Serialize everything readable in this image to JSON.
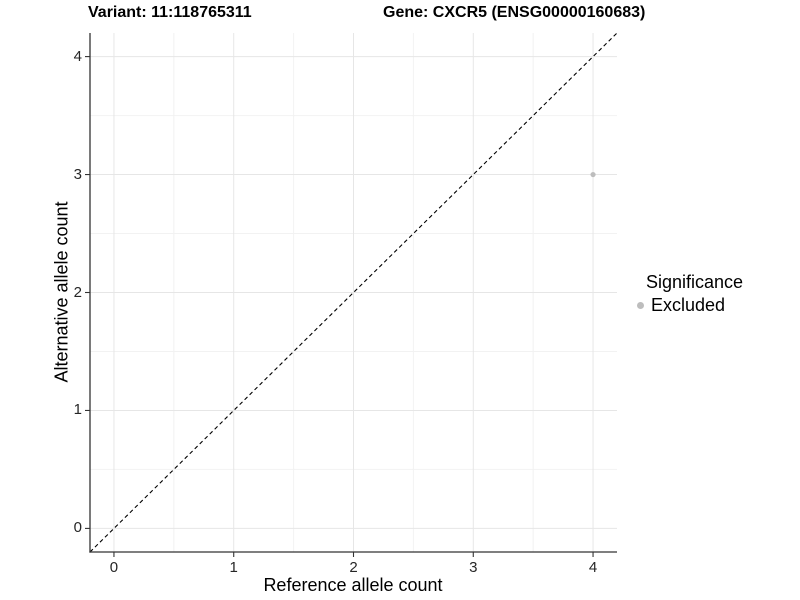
{
  "chart_data": {
    "type": "scatter",
    "title_left": "Variant: 11:118765311",
    "title_right": "Gene: CXCR5 (ENSG00000160683)",
    "xlabel": "Reference allele count",
    "ylabel": "Alternative allele count",
    "xlim": [
      -0.2,
      4.2
    ],
    "ylim": [
      -0.2,
      4.2
    ],
    "x_ticks": [
      0,
      1,
      2,
      3,
      4
    ],
    "y_ticks": [
      0,
      1,
      2,
      3,
      4
    ],
    "minor_x": [
      0.5,
      1.5,
      2.5,
      3.5
    ],
    "minor_y": [
      0.5,
      1.5,
      2.5,
      3.5
    ],
    "grid": true,
    "points": [
      {
        "x": 4,
        "y": 3,
        "series": "Excluded",
        "color": "#bdbdbd"
      }
    ],
    "reference_line": {
      "type": "identity",
      "from": [
        -0.2,
        -0.2
      ],
      "to": [
        4.2,
        4.2
      ],
      "style": "dashed",
      "color": "#000000"
    },
    "legend": {
      "title": "Significance",
      "position": "right",
      "entries": [
        {
          "label": "Excluded",
          "color": "#bdbdbd"
        }
      ]
    },
    "colors": {
      "grid_major": "#e6e6e6",
      "grid_minor": "#f2f2f2",
      "axis": "#333333",
      "tick_label": "#262626",
      "point": "#bdbdbd"
    }
  }
}
